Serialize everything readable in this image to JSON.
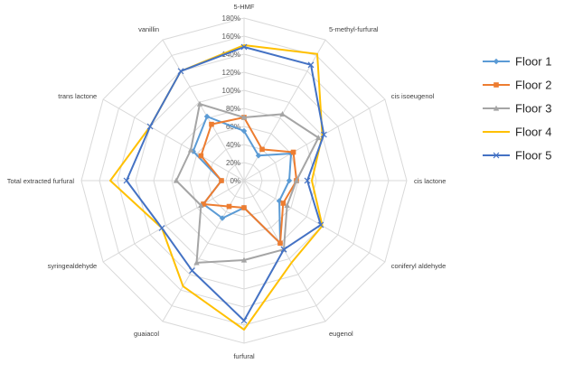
{
  "chart_data": {
    "type": "radar",
    "categories": [
      "5-HMF",
      "5-methyl-furfural",
      "cis isoeugenol",
      "cis lactone",
      "coniferyl aldehyde",
      "eugenol",
      "furfural",
      "guaiacol",
      "syringealdehyde",
      "Total extracted furfural",
      "trans lactone",
      "vanillin"
    ],
    "r_ticks": [
      "0%",
      "20%",
      "40%",
      "60%",
      "80%",
      "100%",
      "120%",
      "140%",
      "160%",
      "180%"
    ],
    "r_max": 180,
    "legend_position": "right",
    "series": [
      {
        "name": "Floor 1",
        "color": "#5B9BD5",
        "marker": "diamond",
        "values": [
          55,
          32,
          60,
          50,
          45,
          80,
          30,
          48,
          52,
          25,
          65,
          82
        ]
      },
      {
        "name": "Floor 2",
        "color": "#ED7D31",
        "marker": "square",
        "values": [
          70,
          40,
          63,
          58,
          50,
          80,
          30,
          33,
          52,
          25,
          55,
          72
        ]
      },
      {
        "name": "Floor 3",
        "color": "#A5A5A5",
        "marker": "triangle",
        "values": [
          70,
          85,
          95,
          58,
          55,
          88,
          88,
          105,
          55,
          75,
          68,
          98
        ]
      },
      {
        "name": "Floor 4",
        "color": "#FFC000",
        "marker": "none",
        "values": [
          150,
          162,
          100,
          75,
          100,
          105,
          165,
          135,
          105,
          148,
          120,
          140
        ]
      },
      {
        "name": "Floor 5",
        "color": "#4472C4",
        "marker": "x",
        "values": [
          148,
          148,
          102,
          70,
          98,
          88,
          155,
          115,
          105,
          130,
          120,
          140
        ]
      }
    ]
  }
}
